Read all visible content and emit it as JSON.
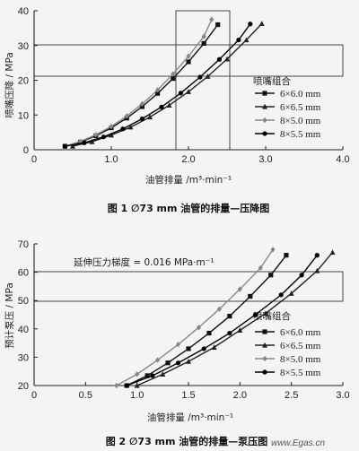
{
  "chart_data": [
    {
      "type": "line",
      "ylabel": "喷嘴压降 / MPa",
      "xlabel": "油管排量 /m³·min⁻¹",
      "xlim": [
        0,
        4.0
      ],
      "ylim": [
        0,
        40
      ],
      "xticks": [
        "0",
        "1.0",
        "2.0",
        "3.0",
        "4.0"
      ],
      "yticks": [
        "0",
        "10",
        "20",
        "30",
        "40"
      ],
      "caption": "图 1   ∅73 mm 油管的排量—压降图",
      "legend_title": "喷嘴组合",
      "legend_position": "right",
      "series": [
        {
          "name": "6×6.0 mm",
          "marker": "square",
          "color": "#111111",
          "x": [
            0.4,
            0.6,
            0.8,
            1.0,
            1.2,
            1.4,
            1.6,
            1.8,
            2.0,
            2.2,
            2.38
          ],
          "y": [
            1,
            2.2,
            4,
            6.3,
            9.1,
            12.4,
            16.2,
            20.5,
            25.3,
            30.6,
            36
          ]
        },
        {
          "name": "6×6.5 mm",
          "marker": "triangle",
          "color": "#222222",
          "x": [
            0.5,
            0.75,
            1.0,
            1.25,
            1.5,
            1.75,
            2.0,
            2.25,
            2.5,
            2.75,
            2.95
          ],
          "y": [
            1,
            2.3,
            4.2,
            6.5,
            9.4,
            12.8,
            16.7,
            21.1,
            26.1,
            31.6,
            36.3
          ]
        },
        {
          "name": "8×5.0 mm",
          "marker": "diamond",
          "color": "#888888",
          "x": [
            0.4,
            0.6,
            0.8,
            1.0,
            1.2,
            1.4,
            1.6,
            1.8,
            2.0,
            2.2,
            2.3
          ],
          "y": [
            1,
            2.4,
            4.3,
            6.7,
            9.7,
            13.2,
            17.2,
            21.8,
            26.9,
            32.6,
            37.5
          ]
        },
        {
          "name": "8×5.5 mm",
          "marker": "circle",
          "color": "#000000",
          "x": [
            0.4,
            0.65,
            0.9,
            1.15,
            1.4,
            1.65,
            1.9,
            2.15,
            2.4,
            2.65,
            2.8
          ],
          "y": [
            1,
            2,
            3.7,
            6,
            8.9,
            12.3,
            16.3,
            20.9,
            26,
            31.6,
            36.2
          ]
        }
      ]
    },
    {
      "type": "line",
      "ylabel": "预计泵压 / MPa",
      "xlabel": "油管排量 /m³·min⁻¹",
      "xlim": [
        0,
        3.0
      ],
      "ylim": [
        20,
        70
      ],
      "xticks": [
        "0",
        "0.5",
        "1.0",
        "1.5",
        "2.0",
        "2.5",
        "3.0"
      ],
      "yticks": [
        "20",
        "30",
        "40",
        "50",
        "60",
        "70"
      ],
      "caption": "图 2   ∅73 mm 油管的排量—泵压图",
      "annotation": "延伸压力梯度 = 0.016 MPa·m⁻¹",
      "legend_title": "喷嘴组合",
      "legend_position": "right",
      "series": [
        {
          "name": "6×6.0 mm",
          "marker": "square",
          "color": "#111111",
          "x": [
            0.9,
            1.1,
            1.3,
            1.5,
            1.7,
            1.9,
            2.1,
            2.3,
            2.45
          ],
          "y": [
            20,
            23.5,
            28,
            33,
            38.5,
            44.5,
            51.5,
            59,
            66
          ]
        },
        {
          "name": "6×6.5 mm",
          "marker": "triangle",
          "color": "#222222",
          "x": [
            1.0,
            1.25,
            1.5,
            1.75,
            2.0,
            2.25,
            2.5,
            2.75,
            2.9
          ],
          "y": [
            20,
            24,
            28.5,
            33.5,
            39.5,
            45.5,
            52.5,
            60.5,
            67
          ]
        },
        {
          "name": "8×5.0 mm",
          "marker": "diamond",
          "color": "#888888",
          "x": [
            0.8,
            1.0,
            1.2,
            1.4,
            1.6,
            1.8,
            2.0,
            2.2,
            2.32
          ],
          "y": [
            20,
            24,
            29,
            34.5,
            40.5,
            47,
            54,
            61.5,
            68
          ]
        },
        {
          "name": "8×5.5 mm",
          "marker": "circle",
          "color": "#000000",
          "x": [
            0.9,
            1.15,
            1.4,
            1.65,
            1.9,
            2.15,
            2.4,
            2.6,
            2.75
          ],
          "y": [
            20,
            23.5,
            28,
            33,
            38.5,
            45,
            52,
            59,
            66
          ]
        }
      ]
    }
  ],
  "watermark": "www.Egas.cn"
}
